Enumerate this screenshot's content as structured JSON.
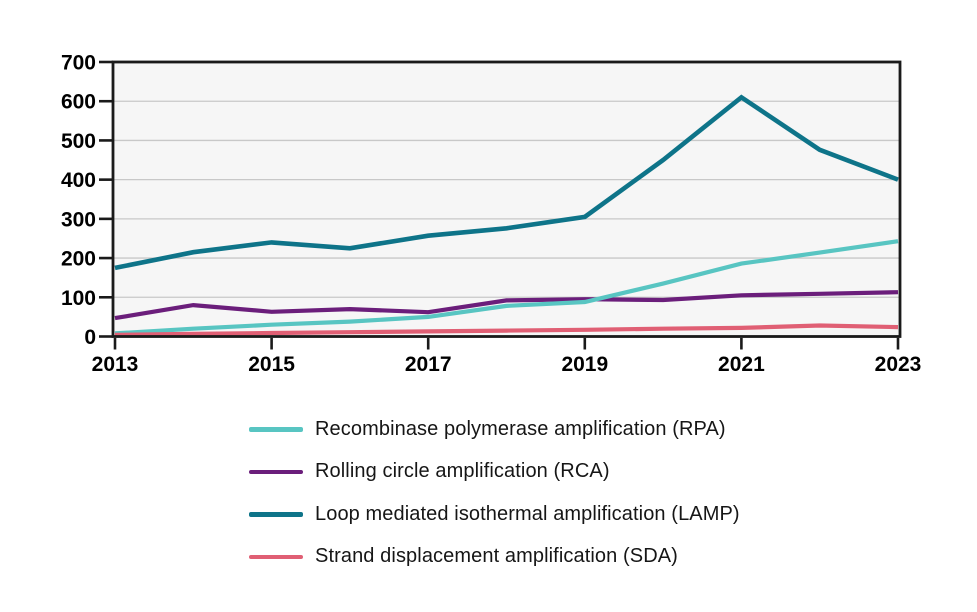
{
  "chart_data": {
    "type": "line",
    "title": "",
    "xlabel": "",
    "ylabel": "",
    "x": [
      2013,
      2014,
      2015,
      2016,
      2017,
      2018,
      2019,
      2020,
      2021,
      2022,
      2023
    ],
    "xticks": [
      2013,
      2015,
      2017,
      2019,
      2021,
      2023
    ],
    "yticks": [
      0,
      100,
      200,
      300,
      400,
      500,
      600,
      700
    ],
    "ylim": [
      0,
      700
    ],
    "xlim": [
      2013,
      2023
    ],
    "grid": "horizontal",
    "legend_position": "bottom-left",
    "series": [
      {
        "name": "Recombinase polymerase amplification (RPA)",
        "short": "RPA",
        "color": "#58c5c2",
        "values": [
          8,
          20,
          30,
          38,
          50,
          78,
          88,
          135,
          186,
          214,
          243
        ]
      },
      {
        "name": "Rolling circle amplification (RCA)",
        "short": "RCA",
        "color": "#6b1e7b",
        "values": [
          47,
          80,
          63,
          70,
          62,
          92,
          95,
          93,
          105,
          109,
          113
        ]
      },
      {
        "name": "Loop mediated isothermal amplification (LAMP)",
        "short": "LAMP",
        "color": "#0e7489",
        "values": [
          175,
          215,
          240,
          225,
          257,
          276,
          305,
          450,
          610,
          476,
          400
        ]
      },
      {
        "name": "Strand displacement amplification (SDA)",
        "short": "SDA",
        "color": "#e05f74",
        "values": [
          4,
          7,
          9,
          11,
          13,
          15,
          17,
          20,
          22,
          28,
          24
        ]
      }
    ],
    "draw_order": [
      2,
      1,
      0,
      3
    ]
  },
  "colors": {
    "plot_background": "#f6f6f6",
    "gridline": "#c8c8c8",
    "frame": "#1a1a1a",
    "tick_label": "#000000"
  }
}
